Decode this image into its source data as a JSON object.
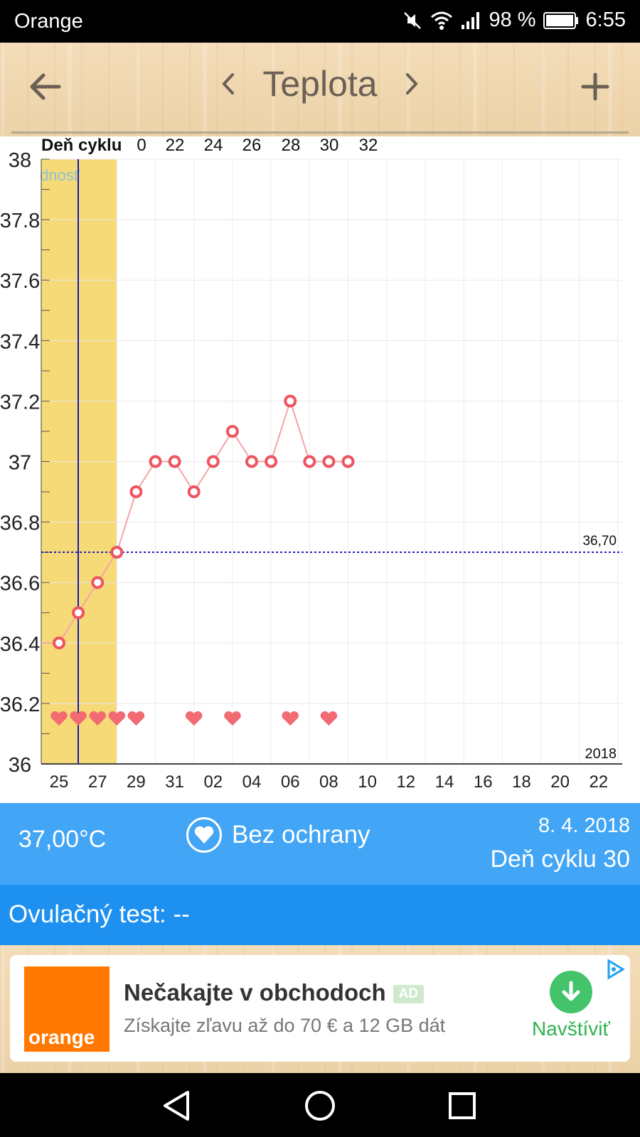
{
  "status_bar": {
    "carrier": "Orange",
    "battery": "98 %",
    "time": "6:55"
  },
  "header": {
    "title": "Teplota"
  },
  "chart_data": {
    "type": "line",
    "top_label": "Deň cyklu",
    "cycle_day_labels": [
      "0",
      "22",
      "24",
      "26",
      "28",
      "30",
      "32"
    ],
    "x_tick_labels": [
      "25",
      "27",
      "29",
      "31",
      "02",
      "04",
      "06",
      "08",
      "10",
      "12",
      "14",
      "16",
      "18",
      "20",
      "22"
    ],
    "y_tick_labels": [
      "36",
      "36.2",
      "36.4",
      "36.6",
      "36.8",
      "37",
      "37.2",
      "37.4",
      "37.6",
      "37.8",
      "38"
    ],
    "ylim": [
      36,
      38
    ],
    "x_dates": [
      "25",
      "26",
      "27",
      "28",
      "29",
      "30",
      "31",
      "01",
      "02",
      "03",
      "04",
      "05",
      "06",
      "07",
      "08",
      "09"
    ],
    "series": [
      {
        "values": [
          36.4,
          36.5,
          36.6,
          36.7,
          36.9,
          37.0,
          37.0,
          36.9,
          37.0,
          37.1,
          37.0,
          37.0,
          37.2,
          37.0,
          37.0,
          37.0
        ],
        "color": "#ee5560"
      }
    ],
    "heart_days": [
      "25",
      "26",
      "27",
      "28",
      "29",
      "01",
      "03",
      "06",
      "08"
    ],
    "coverline": {
      "value": 36.7,
      "label": "36,70",
      "color": "#1a1ab8"
    },
    "highlight_label": "dnosť",
    "highlight_color": "#f7da78",
    "year_label": "2018",
    "grid": true
  },
  "info": {
    "temperature": "37,00°C",
    "protection": "Bez ochrany",
    "date": "8. 4. 2018",
    "cycle_day": "Deň cyklu 30"
  },
  "ovulation": {
    "text": "Ovulačný test: --"
  },
  "ad": {
    "title": "Nečakajte v obchodoch",
    "badge": "AD",
    "subtitle": "Získajte zľavu až do 70 € a 12 GB dát",
    "cta": "Navštíviť",
    "logo_text": "orange"
  }
}
